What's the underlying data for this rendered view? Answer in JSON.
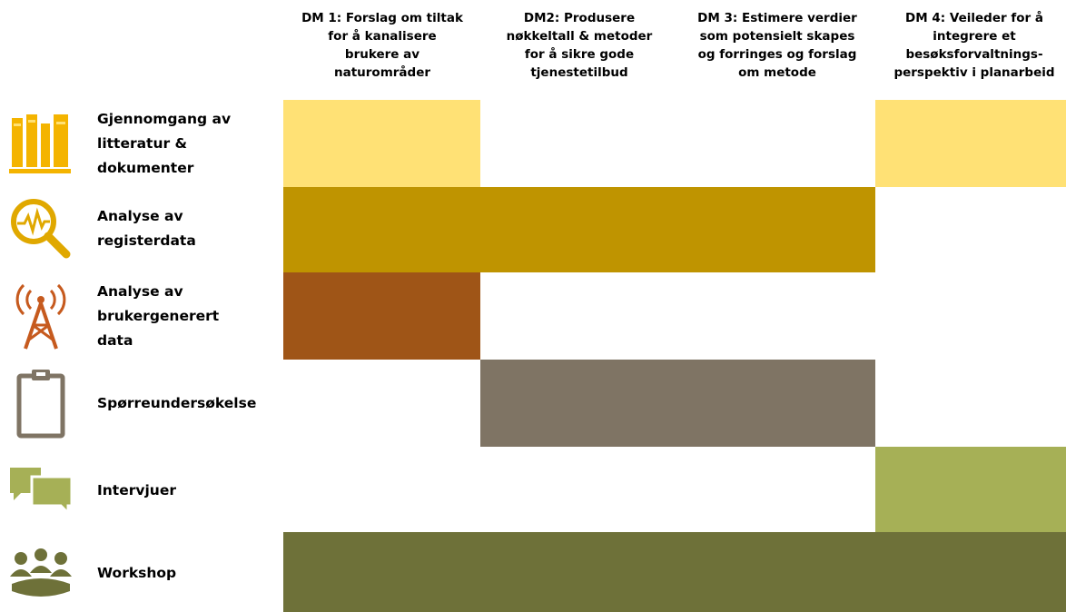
{
  "columns": [
    {
      "label": "DM 1: Forslag om tiltak\nfor å kanalisere\nbrukere av\nnaturområder"
    },
    {
      "label": "DM2: Produsere\nnøkkeltall & metoder\nfor å sikre gode\ntjenestetilbud"
    },
    {
      "label": "DM 3: Estimere verdier\nsom potensielt skapes\nog forringes og forslag\nom metode"
    },
    {
      "label": "DM 4: Veileder for å\nintegrere et\nbesøksforvaltnings-\nperspektiv i planarbeid"
    }
  ],
  "rows": [
    {
      "label": "Gjennomgang av\nlitteratur &\ndokumenter",
      "icon": "books-icon",
      "color": "#FFE175",
      "filled": [
        1,
        0,
        0,
        1
      ]
    },
    {
      "label": "Analyse av\nregisterdata",
      "icon": "magnifier-pulse-icon",
      "color": "#BF9400",
      "filled": [
        1,
        1,
        1,
        0
      ]
    },
    {
      "label": "Analyse av\nbrukergenerert\ndata",
      "icon": "antenna-tower-icon",
      "color": "#9F5517",
      "filled": [
        1,
        0,
        0,
        0
      ]
    },
    {
      "label": "Spørreundersøkelse",
      "icon": "clipboard-icon",
      "color": "#7F7464",
      "filled": [
        0,
        1,
        1,
        0
      ]
    },
    {
      "label": "Intervjuer",
      "icon": "speech-bubbles-icon",
      "color": "#A6B056",
      "filled": [
        0,
        0,
        0,
        1
      ]
    },
    {
      "label": "Workshop",
      "icon": "people-meeting-icon",
      "color": "#6E7139",
      "filled": [
        1,
        1,
        1,
        1
      ]
    }
  ]
}
